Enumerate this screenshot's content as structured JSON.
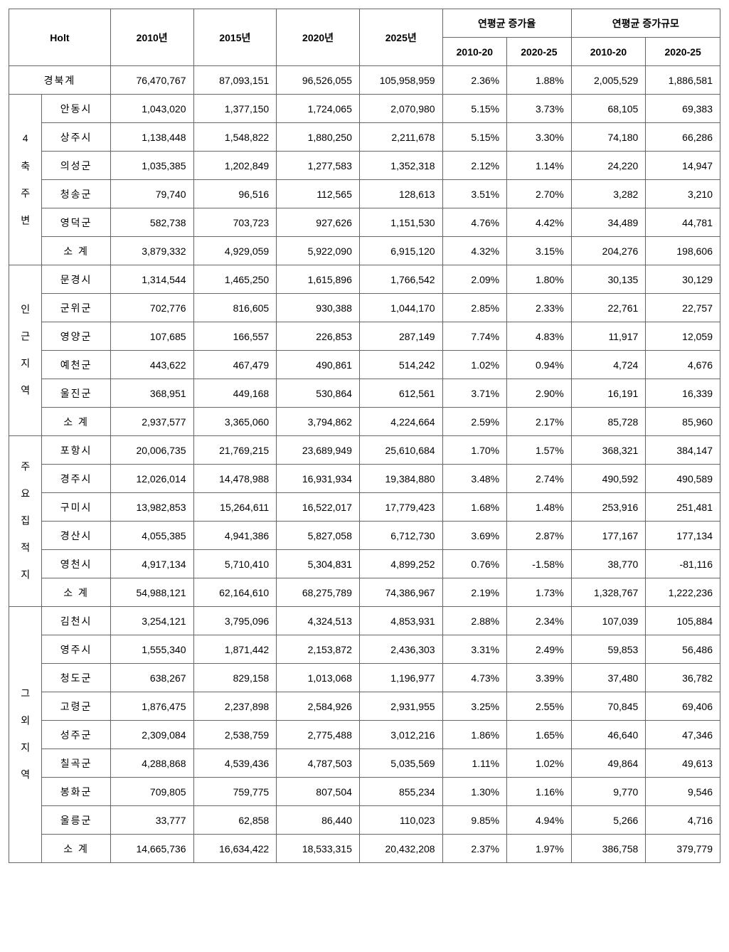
{
  "colors": {
    "border": "#666666",
    "background": "#ffffff",
    "text": "#000000"
  },
  "typography": {
    "fontFamily": "Malgun Gothic",
    "fontSize": 14,
    "headerFontSize": 14
  },
  "table": {
    "type": "table",
    "header": {
      "holt": "Holt",
      "y2010": "2010년",
      "y2015": "2015년",
      "y2020": "2020년",
      "y2025": "2025년",
      "avg_rate": "연평균 증가율",
      "avg_scale": "연평균 증가규모",
      "p2010_20": "2010-20",
      "p2020_25": "2020-25"
    },
    "total": {
      "label": "경북계",
      "y2010": "76,470,767",
      "y2015": "87,093,151",
      "y2020": "96,526,055",
      "y2025": "105,958,959",
      "r1": "2.36%",
      "r2": "1.88%",
      "s1": "2,005,529",
      "s2": "1,886,581"
    },
    "groups": [
      {
        "label": "4 축 주 변",
        "rowspan": 6,
        "rows": [
          {
            "name": "안동시",
            "y2010": "1,043,020",
            "y2015": "1,377,150",
            "y2020": "1,724,065",
            "y2025": "2,070,980",
            "r1": "5.15%",
            "r2": "3.73%",
            "s1": "68,105",
            "s2": "69,383"
          },
          {
            "name": "상주시",
            "y2010": "1,138,448",
            "y2015": "1,548,822",
            "y2020": "1,880,250",
            "y2025": "2,211,678",
            "r1": "5.15%",
            "r2": "3.30%",
            "s1": "74,180",
            "s2": "66,286"
          },
          {
            "name": "의성군",
            "y2010": "1,035,385",
            "y2015": "1,202,849",
            "y2020": "1,277,583",
            "y2025": "1,352,318",
            "r1": "2.12%",
            "r2": "1.14%",
            "s1": "24,220",
            "s2": "14,947"
          },
          {
            "name": "청송군",
            "y2010": "79,740",
            "y2015": "96,516",
            "y2020": "112,565",
            "y2025": "128,613",
            "r1": "3.51%",
            "r2": "2.70%",
            "s1": "3,282",
            "s2": "3,210"
          },
          {
            "name": "영덕군",
            "y2010": "582,738",
            "y2015": "703,723",
            "y2020": "927,626",
            "y2025": "1,151,530",
            "r1": "4.76%",
            "r2": "4.42%",
            "s1": "34,489",
            "s2": "44,781"
          },
          {
            "name": "소  계",
            "y2010": "3,879,332",
            "y2015": "4,929,059",
            "y2020": "5,922,090",
            "y2025": "6,915,120",
            "r1": "4.32%",
            "r2": "3.15%",
            "s1": "204,276",
            "s2": "198,606"
          }
        ]
      },
      {
        "label": "인 근 지 역",
        "rowspan": 6,
        "rows": [
          {
            "name": "문경시",
            "y2010": "1,314,544",
            "y2015": "1,465,250",
            "y2020": "1,615,896",
            "y2025": "1,766,542",
            "r1": "2.09%",
            "r2": "1.80%",
            "s1": "30,135",
            "s2": "30,129"
          },
          {
            "name": "군위군",
            "y2010": "702,776",
            "y2015": "816,605",
            "y2020": "930,388",
            "y2025": "1,044,170",
            "r1": "2.85%",
            "r2": "2.33%",
            "s1": "22,761",
            "s2": "22,757"
          },
          {
            "name": "영양군",
            "y2010": "107,685",
            "y2015": "166,557",
            "y2020": "226,853",
            "y2025": "287,149",
            "r1": "7.74%",
            "r2": "4.83%",
            "s1": "11,917",
            "s2": "12,059"
          },
          {
            "name": "예천군",
            "y2010": "443,622",
            "y2015": "467,479",
            "y2020": "490,861",
            "y2025": "514,242",
            "r1": "1.02%",
            "r2": "0.94%",
            "s1": "4,724",
            "s2": "4,676"
          },
          {
            "name": "울진군",
            "y2010": "368,951",
            "y2015": "449,168",
            "y2020": "530,864",
            "y2025": "612,561",
            "r1": "3.71%",
            "r2": "2.90%",
            "s1": "16,191",
            "s2": "16,339"
          },
          {
            "name": "소  계",
            "y2010": "2,937,577",
            "y2015": "3,365,060",
            "y2020": "3,794,862",
            "y2025": "4,224,664",
            "r1": "2.59%",
            "r2": "2.17%",
            "s1": "85,728",
            "s2": "85,960"
          }
        ]
      },
      {
        "label": "주 요 집 적 지",
        "rowspan": 6,
        "rows": [
          {
            "name": "포항시",
            "y2010": "20,006,735",
            "y2015": "21,769,215",
            "y2020": "23,689,949",
            "y2025": "25,610,684",
            "r1": "1.70%",
            "r2": "1.57%",
            "s1": "368,321",
            "s2": "384,147"
          },
          {
            "name": "경주시",
            "y2010": "12,026,014",
            "y2015": "14,478,988",
            "y2020": "16,931,934",
            "y2025": "19,384,880",
            "r1": "3.48%",
            "r2": "2.74%",
            "s1": "490,592",
            "s2": "490,589"
          },
          {
            "name": "구미시",
            "y2010": "13,982,853",
            "y2015": "15,264,611",
            "y2020": "16,522,017",
            "y2025": "17,779,423",
            "r1": "1.68%",
            "r2": "1.48%",
            "s1": "253,916",
            "s2": "251,481"
          },
          {
            "name": "경산시",
            "y2010": "4,055,385",
            "y2015": "4,941,386",
            "y2020": "5,827,058",
            "y2025": "6,712,730",
            "r1": "3.69%",
            "r2": "2.87%",
            "s1": "177,167",
            "s2": "177,134"
          },
          {
            "name": "영천시",
            "y2010": "4,917,134",
            "y2015": "5,710,410",
            "y2020": "5,304,831",
            "y2025": "4,899,252",
            "r1": "0.76%",
            "r2": "-1.58%",
            "s1": "38,770",
            "s2": "-81,116"
          },
          {
            "name": "소  계",
            "y2010": "54,988,121",
            "y2015": "62,164,610",
            "y2020": "68,275,789",
            "y2025": "74,386,967",
            "r1": "2.19%",
            "r2": "1.73%",
            "s1": "1,328,767",
            "s2": "1,222,236"
          }
        ]
      },
      {
        "label": "그 외 지 역",
        "rowspan": 9,
        "rows": [
          {
            "name": "김천시",
            "y2010": "3,254,121",
            "y2015": "3,795,096",
            "y2020": "4,324,513",
            "y2025": "4,853,931",
            "r1": "2.88%",
            "r2": "2.34%",
            "s1": "107,039",
            "s2": "105,884"
          },
          {
            "name": "영주시",
            "y2010": "1,555,340",
            "y2015": "1,871,442",
            "y2020": "2,153,872",
            "y2025": "2,436,303",
            "r1": "3.31%",
            "r2": "2.49%",
            "s1": "59,853",
            "s2": "56,486"
          },
          {
            "name": "청도군",
            "y2010": "638,267",
            "y2015": "829,158",
            "y2020": "1,013,068",
            "y2025": "1,196,977",
            "r1": "4.73%",
            "r2": "3.39%",
            "s1": "37,480",
            "s2": "36,782"
          },
          {
            "name": "고령군",
            "y2010": "1,876,475",
            "y2015": "2,237,898",
            "y2020": "2,584,926",
            "y2025": "2,931,955",
            "r1": "3.25%",
            "r2": "2.55%",
            "s1": "70,845",
            "s2": "69,406"
          },
          {
            "name": "성주군",
            "y2010": "2,309,084",
            "y2015": "2,538,759",
            "y2020": "2,775,488",
            "y2025": "3,012,216",
            "r1": "1.86%",
            "r2": "1.65%",
            "s1": "46,640",
            "s2": "47,346"
          },
          {
            "name": "칠곡군",
            "y2010": "4,288,868",
            "y2015": "4,539,436",
            "y2020": "4,787,503",
            "y2025": "5,035,569",
            "r1": "1.11%",
            "r2": "1.02%",
            "s1": "49,864",
            "s2": "49,613"
          },
          {
            "name": "봉화군",
            "y2010": "709,805",
            "y2015": "759,775",
            "y2020": "807,504",
            "y2025": "855,234",
            "r1": "1.30%",
            "r2": "1.16%",
            "s1": "9,770",
            "s2": "9,546"
          },
          {
            "name": "울릉군",
            "y2010": "33,777",
            "y2015": "62,858",
            "y2020": "86,440",
            "y2025": "110,023",
            "r1": "9.85%",
            "r2": "4.94%",
            "s1": "5,266",
            "s2": "4,716"
          },
          {
            "name": "소  계",
            "y2010": "14,665,736",
            "y2015": "16,634,422",
            "y2020": "18,533,315",
            "y2025": "20,432,208",
            "r1": "2.37%",
            "r2": "1.97%",
            "s1": "386,758",
            "s2": "379,779"
          }
        ]
      }
    ]
  }
}
